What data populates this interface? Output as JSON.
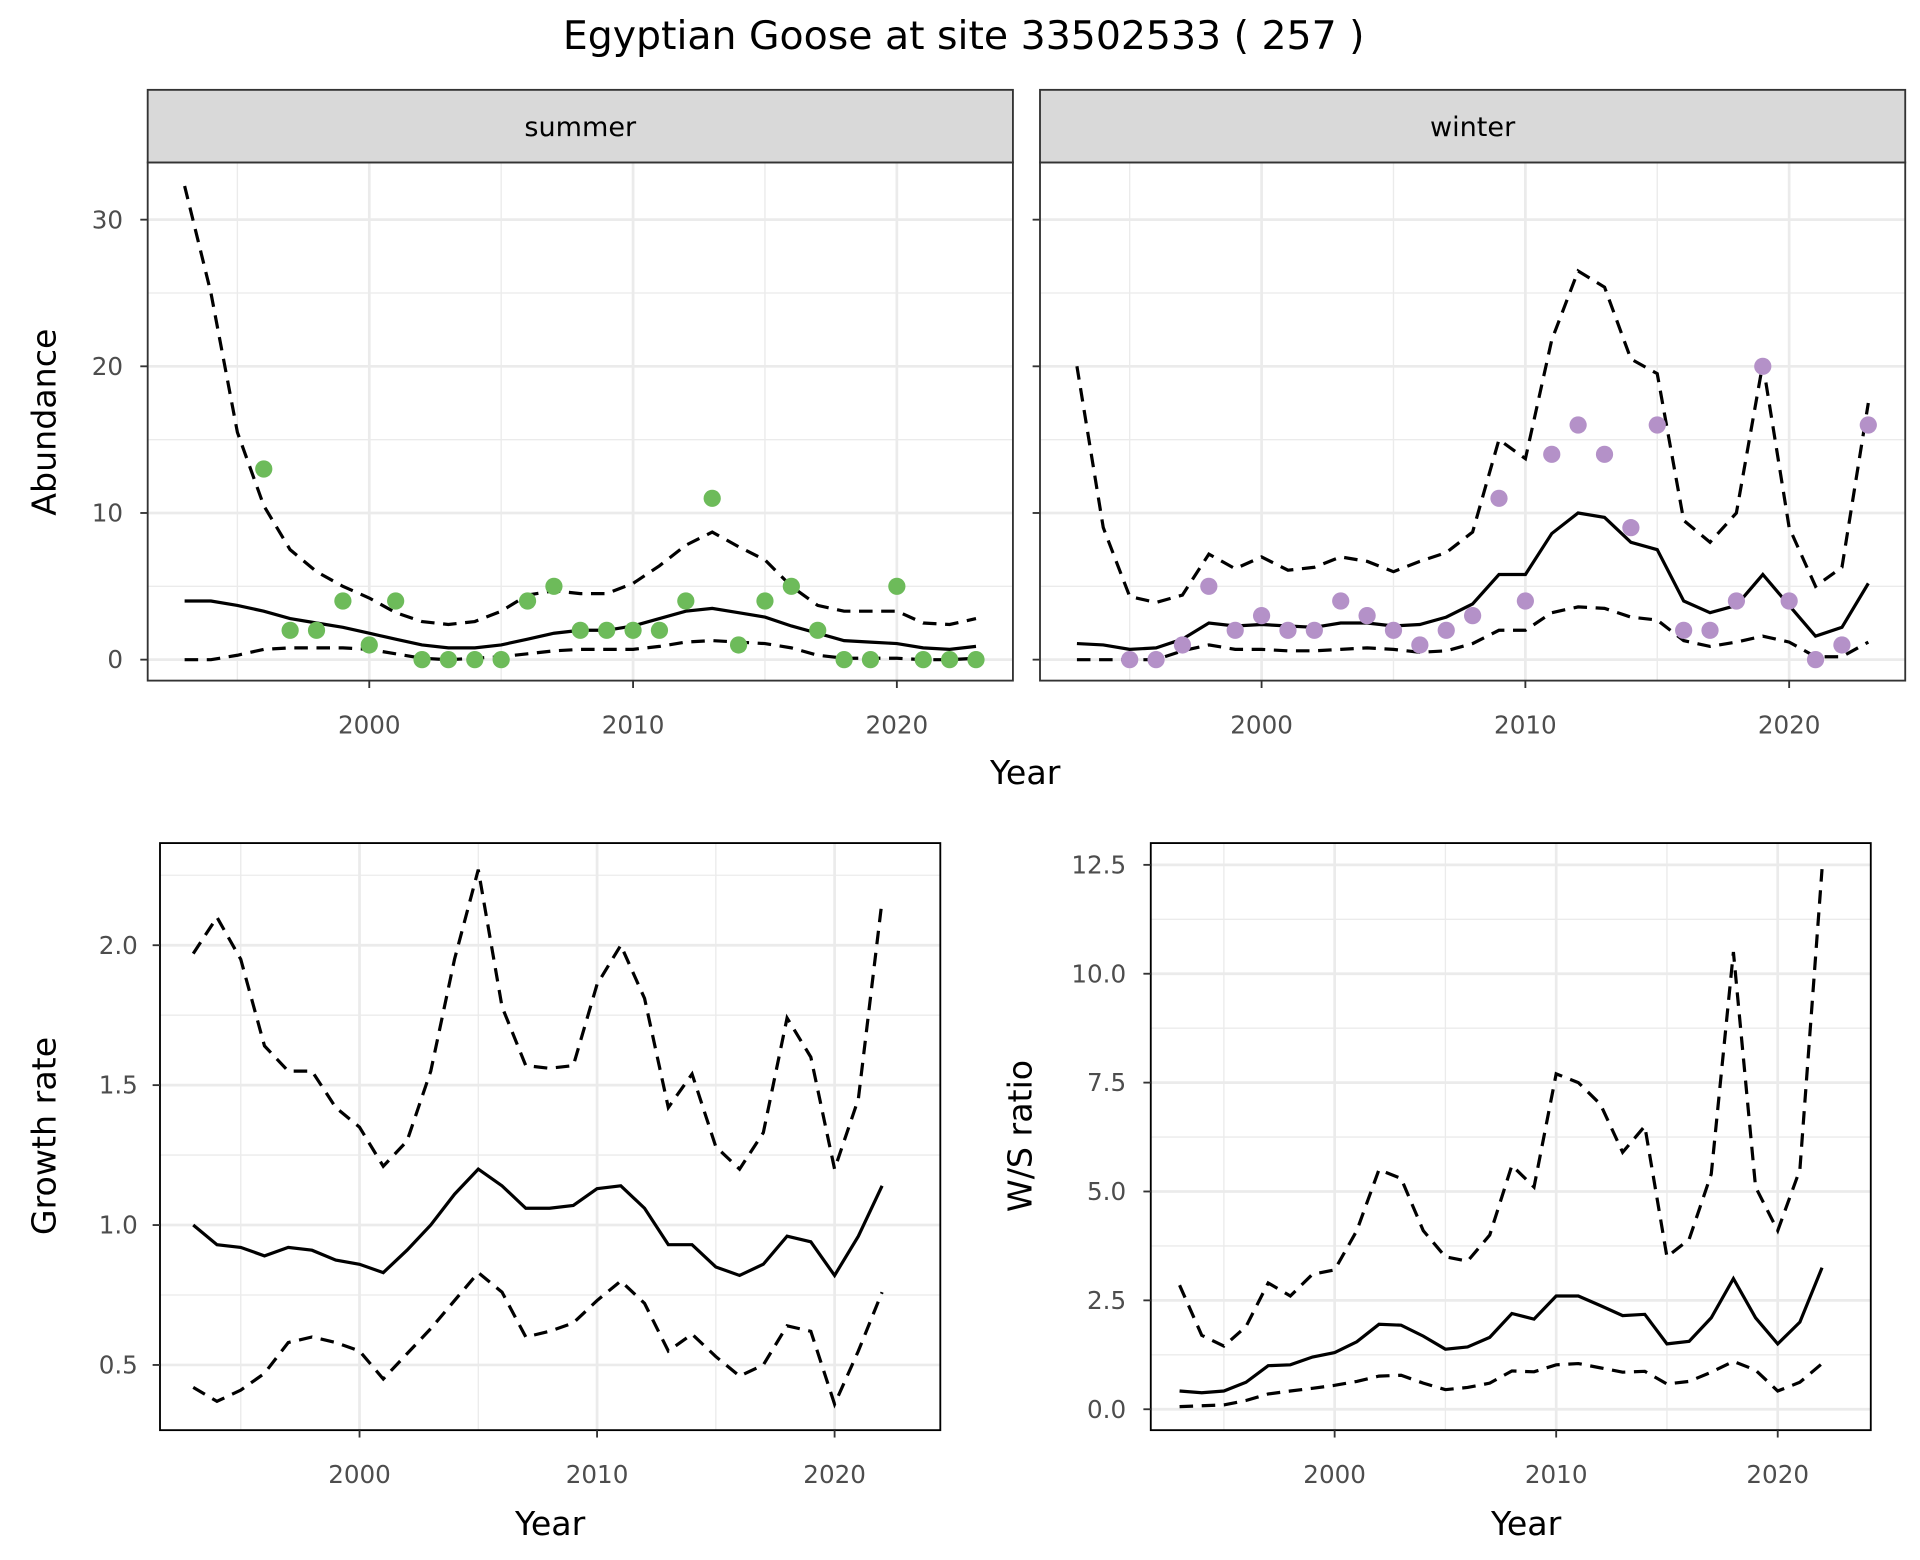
{
  "title": "Egyptian Goose at site 33502533 ( 257 )",
  "colors": {
    "summer_points": "#6dbb5a",
    "winter_points": "#b491c8",
    "lines": "#000000",
    "strip_bg": "#d9d9d9",
    "grid": "#ebebeb"
  },
  "chart_data": [
    {
      "id": "summer",
      "type": "scatter+line",
      "strip": "summer",
      "xlabel": "Year",
      "ylabel": "Abundance",
      "xlim": [
        1991.6,
        2024.4
      ],
      "ylim": [
        -1.43,
        33.9
      ],
      "xticks": [
        2000,
        2010,
        2020
      ],
      "yticks": [
        0,
        10,
        20,
        30
      ],
      "grid": true,
      "points": {
        "x": [
          1996,
          1997,
          1998,
          1999,
          2000,
          2001,
          2002,
          2003,
          2004,
          2005,
          2006,
          2007,
          2008,
          2009,
          2010,
          2011,
          2012,
          2013,
          2014,
          2015,
          2016,
          2017,
          2018,
          2019,
          2020,
          2021,
          2022,
          2023
        ],
        "y": [
          13,
          2,
          2,
          4,
          1,
          4,
          0,
          0,
          0,
          0,
          4,
          5,
          2,
          2,
          2,
          2,
          4,
          11,
          1,
          4,
          5,
          2,
          0,
          0,
          5,
          0,
          0,
          0
        ]
      },
      "line_x": [
        1993,
        1994,
        1995,
        1996,
        1997,
        1998,
        1999,
        2000,
        2001,
        2002,
        2003,
        2004,
        2005,
        2006,
        2007,
        2008,
        2009,
        2010,
        2011,
        2012,
        2013,
        2014,
        2015,
        2016,
        2017,
        2018,
        2019,
        2020,
        2021,
        2022,
        2023
      ],
      "fit": [
        4.0,
        4.0,
        3.7,
        3.3,
        2.8,
        2.5,
        2.2,
        1.8,
        1.4,
        1.0,
        0.8,
        0.8,
        1.0,
        1.4,
        1.8,
        2.0,
        2.0,
        2.3,
        2.8,
        3.3,
        3.5,
        3.2,
        2.9,
        2.3,
        1.8,
        1.3,
        1.2,
        1.1,
        0.8,
        0.7,
        0.9
      ],
      "upper": [
        32.3,
        25,
        15.5,
        10.5,
        7.5,
        6,
        5,
        4.2,
        3.2,
        2.6,
        2.4,
        2.6,
        3.3,
        4.4,
        4.7,
        4.5,
        4.5,
        5.2,
        6.4,
        7.8,
        8.7,
        7.7,
        6.8,
        5.0,
        3.7,
        3.3,
        3.3,
        3.3,
        2.5,
        2.4,
        2.8
      ],
      "lower": [
        0,
        0,
        0.3,
        0.7,
        0.8,
        0.8,
        0.8,
        0.7,
        0.4,
        0.1,
        0.0,
        0.1,
        0.2,
        0.4,
        0.6,
        0.7,
        0.7,
        0.7,
        0.9,
        1.2,
        1.3,
        1.2,
        1.1,
        0.8,
        0.3,
        0.1,
        0.1,
        0.1,
        0.0,
        0.0,
        0.1
      ]
    },
    {
      "id": "winter",
      "type": "scatter+line",
      "strip": "winter",
      "xlabel": "Year",
      "ylabel": "Abundance",
      "xlim": [
        1991.6,
        2024.4
      ],
      "ylim": [
        -1.43,
        33.9
      ],
      "xticks": [
        2000,
        2010,
        2020
      ],
      "yticks": [
        0,
        10,
        20,
        30
      ],
      "grid": true,
      "points": {
        "x": [
          1995,
          1996,
          1997,
          1998,
          1999,
          2000,
          2001,
          2002,
          2003,
          2004,
          2005,
          2006,
          2007,
          2008,
          2009,
          2010,
          2011,
          2012,
          2013,
          2014,
          2015,
          2016,
          2017,
          2018,
          2019,
          2020,
          2021,
          2022,
          2023
        ],
        "y": [
          0,
          0,
          1,
          5,
          2,
          3,
          2,
          2,
          4,
          3,
          2,
          1,
          2,
          3,
          11,
          4,
          14,
          16,
          14,
          9,
          16,
          2,
          2,
          4,
          20,
          4,
          0,
          1,
          16
        ]
      },
      "line_x": [
        1993,
        1994,
        1995,
        1996,
        1997,
        1998,
        1999,
        2000,
        2001,
        2002,
        2003,
        2004,
        2005,
        2006,
        2007,
        2008,
        2009,
        2010,
        2011,
        2012,
        2013,
        2014,
        2015,
        2016,
        2017,
        2018,
        2019,
        2020,
        2021,
        2022,
        2023
      ],
      "fit": [
        1.1,
        1.0,
        0.7,
        0.8,
        1.4,
        2.5,
        2.3,
        2.4,
        2.3,
        2.2,
        2.5,
        2.5,
        2.3,
        2.4,
        2.9,
        3.8,
        5.8,
        5.8,
        8.6,
        10.0,
        9.7,
        8.0,
        7.5,
        4.0,
        3.2,
        3.7,
        5.8,
        3.7,
        1.6,
        2.2,
        5.2
      ],
      "upper": [
        20,
        9,
        4.3,
        3.9,
        4.4,
        7.2,
        6.2,
        7.0,
        6.1,
        6.3,
        7.0,
        6.7,
        6.0,
        6.7,
        7.3,
        8.7,
        15.0,
        13.7,
        21.8,
        26.5,
        25.4,
        20.5,
        19.5,
        9.5,
        8.0,
        10.0,
        20.2,
        9.0,
        5.0,
        6.3,
        17.5
      ],
      "lower": [
        0,
        0,
        0,
        0,
        0.6,
        1.0,
        0.7,
        0.7,
        0.6,
        0.6,
        0.7,
        0.8,
        0.7,
        0.5,
        0.6,
        1.1,
        2.0,
        2.0,
        3.2,
        3.6,
        3.5,
        2.9,
        2.7,
        1.3,
        0.9,
        1.2,
        1.6,
        1.2,
        0.2,
        0.2,
        1.2
      ]
    },
    {
      "id": "growth",
      "type": "line",
      "xlabel": "Year",
      "ylabel": "Growth rate",
      "xlim": [
        1991.6,
        2024.45
      ],
      "ylim": [
        0.267,
        2.365
      ],
      "xticks": [
        2000,
        2010,
        2020
      ],
      "yticks": [
        0.5,
        1.0,
        1.5,
        2.0
      ],
      "ytick_labels": [
        "0.5",
        "1.0",
        "1.5",
        "2.0"
      ],
      "grid": true,
      "line_x": [
        1993,
        1994,
        1995,
        1996,
        1997,
        1998,
        1999,
        2000,
        2001,
        2002,
        2003,
        2004,
        2005,
        2006,
        2007,
        2008,
        2009,
        2010,
        2011,
        2012,
        2013,
        2014,
        2015,
        2016,
        2017,
        2018,
        2019,
        2020,
        2021,
        2022
      ],
      "fit": [
        1.0,
        0.93,
        0.92,
        0.89,
        0.92,
        0.91,
        0.875,
        0.86,
        0.83,
        0.91,
        1.0,
        1.11,
        1.2,
        1.14,
        1.06,
        1.06,
        1.07,
        1.13,
        1.14,
        1.06,
        0.93,
        0.93,
        0.85,
        0.82,
        0.86,
        0.96,
        0.94,
        0.82,
        0.96,
        1.14
      ],
      "upper": [
        1.97,
        2.1,
        1.95,
        1.64,
        1.55,
        1.55,
        1.42,
        1.35,
        1.21,
        1.3,
        1.55,
        1.95,
        2.27,
        1.78,
        1.57,
        1.56,
        1.57,
        1.86,
        2.0,
        1.81,
        1.42,
        1.54,
        1.28,
        1.2,
        1.33,
        1.74,
        1.6,
        1.2,
        1.45,
        2.16
      ],
      "lower": [
        0.42,
        0.37,
        0.41,
        0.47,
        0.58,
        0.6,
        0.58,
        0.55,
        0.45,
        0.54,
        0.63,
        0.73,
        0.83,
        0.76,
        0.6,
        0.62,
        0.65,
        0.73,
        0.8,
        0.72,
        0.55,
        0.61,
        0.53,
        0.46,
        0.5,
        0.64,
        0.62,
        0.36,
        0.55,
        0.76
      ]
    },
    {
      "id": "ratio",
      "type": "line",
      "xlabel": "Year",
      "ylabel": "W/S ratio",
      "xlim": [
        1991.7,
        2024.2
      ],
      "ylim": [
        -0.48,
        13.0
      ],
      "xticks": [
        2000,
        2010,
        2020
      ],
      "yticks": [
        0,
        2.5,
        5,
        7.5,
        10,
        12.5
      ],
      "ytick_labels": [
        "0.0",
        "2.5",
        "5.0",
        "7.5",
        "10.0",
        "12.5"
      ],
      "grid": true,
      "line_x": [
        1993,
        1994,
        1995,
        1996,
        1997,
        1998,
        1999,
        2000,
        2001,
        2002,
        2003,
        2004,
        2005,
        2006,
        2007,
        2008,
        2009,
        2010,
        2011,
        2012,
        2013,
        2014,
        2015,
        2016,
        2017,
        2018,
        2019,
        2020,
        2021,
        2022
      ],
      "fit": [
        0.42,
        0.38,
        0.42,
        0.62,
        1.0,
        1.02,
        1.2,
        1.3,
        1.55,
        1.95,
        1.93,
        1.68,
        1.38,
        1.43,
        1.65,
        2.2,
        2.07,
        2.6,
        2.6,
        2.38,
        2.15,
        2.18,
        1.5,
        1.56,
        2.1,
        3.0,
        2.1,
        1.5,
        2.0,
        3.25
      ],
      "upper": [
        2.85,
        1.7,
        1.45,
        1.9,
        2.9,
        2.6,
        3.1,
        3.2,
        4.1,
        5.5,
        5.3,
        4.1,
        3.5,
        3.4,
        4.0,
        5.6,
        5.1,
        7.7,
        7.5,
        7.0,
        5.9,
        6.5,
        3.5,
        3.9,
        5.4,
        10.5,
        5.1,
        4.1,
        5.5,
        12.4
      ],
      "lower": [
        0.06,
        0.08,
        0.1,
        0.2,
        0.35,
        0.42,
        0.48,
        0.55,
        0.64,
        0.76,
        0.78,
        0.6,
        0.45,
        0.5,
        0.6,
        0.88,
        0.86,
        1.02,
        1.05,
        0.95,
        0.85,
        0.87,
        0.58,
        0.64,
        0.85,
        1.1,
        0.9,
        0.42,
        0.62,
        1.05
      ]
    }
  ],
  "shared_xlabel_top": "Year"
}
